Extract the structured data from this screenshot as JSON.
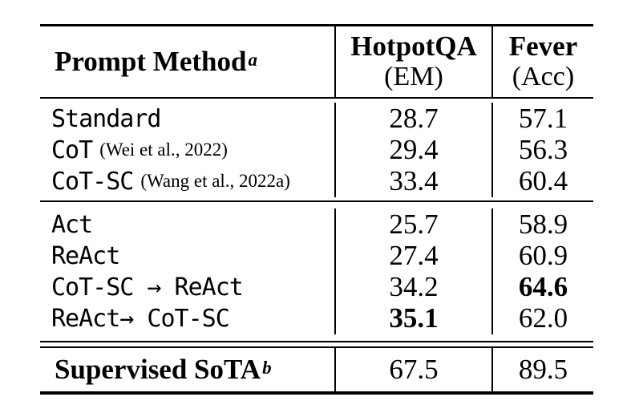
{
  "table": {
    "header": {
      "method_label": "Prompt Method",
      "method_sup": "a",
      "columns": [
        {
          "name": "HotpotQA",
          "unit": "(EM)"
        },
        {
          "name": "Fever",
          "unit": "(Acc)"
        }
      ]
    },
    "rows": [
      {
        "name": "Standard",
        "cite": "",
        "em": "28.7",
        "acc": "57.1",
        "em_bold": false,
        "acc_bold": false
      },
      {
        "name": "CoT",
        "cite": "(Wei et al., 2022)",
        "em": "29.4",
        "acc": "56.3",
        "em_bold": false,
        "acc_bold": false
      },
      {
        "name": "CoT-SC",
        "cite": "(Wang et al., 2022a)",
        "em": "33.4",
        "acc": "60.4",
        "em_bold": false,
        "acc_bold": false
      },
      {
        "name": "Act",
        "cite": "",
        "em": "25.7",
        "acc": "58.9",
        "em_bold": false,
        "acc_bold": false
      },
      {
        "name": "ReAct",
        "cite": "",
        "em": "27.4",
        "acc": "60.9",
        "em_bold": false,
        "acc_bold": false
      },
      {
        "name": "CoT-SC → ReAct",
        "cite": "",
        "em": "34.2",
        "acc": "64.6",
        "em_bold": false,
        "acc_bold": true
      },
      {
        "name": "ReAct→ CoT-SC",
        "cite": "",
        "em": "35.1",
        "acc": "62.0",
        "em_bold": true,
        "acc_bold": false
      }
    ],
    "footer": {
      "label": "Supervised SoTA",
      "sup": "b",
      "em": "67.5",
      "acc": "89.5"
    }
  },
  "colors": {
    "text": "#000000",
    "background": "#ffffff",
    "rule": "#000000"
  }
}
